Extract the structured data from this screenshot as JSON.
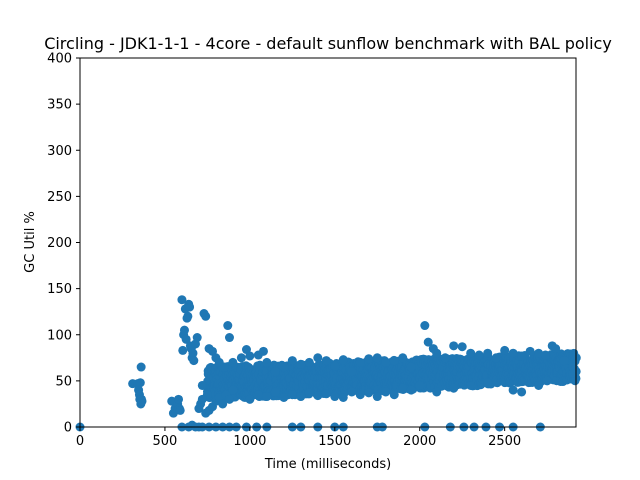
{
  "chart_data": {
    "type": "scatter",
    "title": "Circling - JDK1-1-1 - 4core -  default sunflow benchmark with BAL policy",
    "xlabel": "Time (milliseconds)",
    "ylabel": "GC Util %",
    "xlim": [
      0,
      2920
    ],
    "ylim": [
      0,
      400
    ],
    "xticks": [
      0,
      500,
      1000,
      1500,
      2000,
      2500
    ],
    "yticks": [
      0,
      50,
      100,
      150,
      200,
      250,
      300,
      350,
      400
    ],
    "grid": false,
    "marker_color": "#1f77b4",
    "series": [
      {
        "points": [
          [
            0,
            0
          ],
          [
            310,
            47
          ],
          [
            340,
            47
          ],
          [
            345,
            40
          ],
          [
            350,
            35
          ],
          [
            352,
            30
          ],
          [
            355,
            48
          ],
          [
            358,
            25
          ],
          [
            360,
            65
          ],
          [
            362,
            30
          ],
          [
            365,
            28
          ],
          [
            540,
            28
          ],
          [
            550,
            15
          ],
          [
            560,
            20
          ],
          [
            570,
            22
          ],
          [
            575,
            25
          ],
          [
            580,
            30
          ],
          [
            585,
            20
          ],
          [
            590,
            18
          ],
          [
            600,
            138
          ],
          [
            605,
            83
          ],
          [
            610,
            100
          ],
          [
            615,
            105
          ],
          [
            620,
            128
          ],
          [
            625,
            95
          ],
          [
            630,
            118
          ],
          [
            635,
            120
          ],
          [
            640,
            133
          ],
          [
            645,
            130
          ],
          [
            650,
            88
          ],
          [
            655,
            85
          ],
          [
            660,
            75
          ],
          [
            665,
            80
          ],
          [
            670,
            72
          ],
          [
            680,
            90
          ],
          [
            690,
            97
          ],
          [
            720,
            45
          ],
          [
            730,
            123
          ],
          [
            740,
            120
          ],
          [
            750,
            35
          ],
          [
            760,
            85
          ],
          [
            780,
            82
          ],
          [
            800,
            75
          ],
          [
            820,
            70
          ],
          [
            850,
            65
          ],
          [
            870,
            110
          ],
          [
            880,
            97
          ],
          [
            900,
            70
          ],
          [
            950,
            75
          ],
          [
            980,
            84
          ],
          [
            1000,
            77
          ],
          [
            1050,
            78
          ],
          [
            1080,
            82
          ],
          [
            1100,
            70
          ],
          [
            700,
            20
          ],
          [
            710,
            25
          ],
          [
            720,
            30
          ],
          [
            740,
            15
          ],
          [
            760,
            18
          ],
          [
            780,
            22
          ],
          [
            800,
            28
          ],
          [
            820,
            32
          ],
          [
            840,
            25
          ],
          [
            860,
            35
          ],
          [
            880,
            30
          ],
          [
            900,
            40
          ],
          [
            600,
            0
          ],
          [
            640,
            0
          ],
          [
            660,
            2
          ],
          [
            680,
            0
          ],
          [
            700,
            0
          ],
          [
            720,
            0
          ],
          [
            760,
            0
          ],
          [
            800,
            0
          ],
          [
            840,
            0
          ],
          [
            880,
            0
          ],
          [
            920,
            0
          ],
          [
            980,
            0
          ],
          [
            1040,
            0
          ],
          [
            1100,
            0
          ],
          [
            1250,
            0
          ],
          [
            1300,
            0
          ],
          [
            1400,
            0
          ],
          [
            1500,
            0
          ],
          [
            1550,
            0
          ],
          [
            1750,
            0
          ],
          [
            1780,
            0
          ],
          [
            2030,
            0
          ],
          [
            2180,
            0
          ],
          [
            2260,
            0
          ],
          [
            2320,
            0
          ],
          [
            2390,
            0
          ],
          [
            2470,
            0
          ],
          [
            2550,
            0
          ],
          [
            2710,
            0
          ],
          [
            1150,
            60
          ],
          [
            1200,
            65
          ],
          [
            1250,
            72
          ],
          [
            1300,
            68
          ],
          [
            1350,
            70
          ],
          [
            1400,
            75
          ],
          [
            1450,
            72
          ],
          [
            1500,
            66
          ],
          [
            1550,
            73
          ],
          [
            1600,
            60
          ],
          [
            1650,
            70
          ],
          [
            1700,
            74
          ],
          [
            1750,
            75
          ],
          [
            1800,
            70
          ],
          [
            1850,
            72
          ],
          [
            1900,
            75
          ],
          [
            1950,
            65
          ],
          [
            2030,
            110
          ],
          [
            2050,
            92
          ],
          [
            2080,
            85
          ],
          [
            2100,
            80
          ],
          [
            2150,
            75
          ],
          [
            2200,
            88
          ],
          [
            2250,
            87
          ],
          [
            2300,
            80
          ],
          [
            2350,
            78
          ],
          [
            2400,
            80
          ],
          [
            2450,
            75
          ],
          [
            2500,
            83
          ],
          [
            2550,
            80
          ],
          [
            2600,
            77
          ],
          [
            2650,
            82
          ],
          [
            2700,
            80
          ],
          [
            2740,
            78
          ],
          [
            2780,
            88
          ],
          [
            2800,
            85
          ],
          [
            2850,
            72
          ],
          [
            2900,
            65
          ],
          [
            1000,
            30
          ],
          [
            1050,
            35
          ],
          [
            1100,
            33
          ],
          [
            1150,
            38
          ],
          [
            1200,
            32
          ],
          [
            1250,
            35
          ],
          [
            1300,
            33
          ],
          [
            1350,
            37
          ],
          [
            1400,
            34
          ],
          [
            1450,
            36
          ],
          [
            1500,
            33
          ],
          [
            1550,
            32
          ],
          [
            1600,
            38
          ],
          [
            1650,
            35
          ],
          [
            1700,
            37
          ],
          [
            1750,
            33
          ],
          [
            1800,
            38
          ],
          [
            1850,
            35
          ],
          [
            1900,
            42
          ],
          [
            1950,
            40
          ],
          [
            2000,
            45
          ],
          [
            2100,
            38
          ],
          [
            2200,
            42
          ],
          [
            2300,
            45
          ],
          [
            2400,
            48
          ],
          [
            2550,
            40
          ],
          [
            2600,
            38
          ],
          [
            2700,
            45
          ],
          [
            2750,
            50
          ],
          [
            2900,
            58
          ],
          [
            2910,
            62
          ],
          [
            2915,
            60
          ]
        ]
      }
    ],
    "band": {
      "x_start": 750,
      "x_end": 2920,
      "y_low_start": 30,
      "y_high_start": 65,
      "y_low_end": 50,
      "y_high_end": 80
    }
  }
}
